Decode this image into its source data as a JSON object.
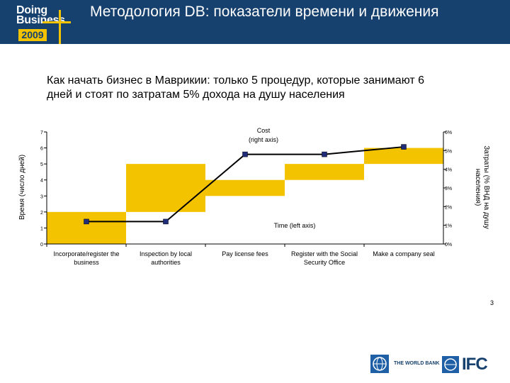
{
  "header": {
    "title": "Методология DB: показатели времени и движения",
    "logo": {
      "line1": "Doing",
      "line2": "Business",
      "year": "2009"
    }
  },
  "subtitle": "Как начать бизнес в Маврикии: только 5 процедур, которые занимают 6 дней и стоят по затратам 5% дохода на душу населения",
  "footer": {
    "page_number": "3",
    "world_bank_label": "THE WORLD BANK",
    "ifc_label": "IFC"
  },
  "colors": {
    "header_bg": "#16406e",
    "time_fill": "#f4c300",
    "cost_line": "#000000",
    "cost_marker": "#1f2d7a",
    "accent": "#f4c300"
  },
  "chart_data": {
    "type": "bar",
    "categories": [
      "Incorporate/register the business",
      "Inspection by local authorities",
      "Pay license fees",
      "Register with the Social Security Office",
      "Make a company seal"
    ],
    "time_ranges": [
      [
        0,
        2
      ],
      [
        2,
        5
      ],
      [
        3,
        4
      ],
      [
        4,
        5
      ],
      [
        5,
        6
      ]
    ],
    "cost_values": [
      1.2,
      1.2,
      4.8,
      4.8,
      5.2
    ],
    "ylabel_left": "Время (число дней)",
    "ylabel_right": "Затраты (% ВНД на душу населения)",
    "ylim_left": [
      0,
      7
    ],
    "yticks_left": [
      "0",
      "1",
      "2",
      "3",
      "4",
      "5",
      "6",
      "7"
    ],
    "ylim_right": [
      0,
      6
    ],
    "yticks_right": [
      "0%",
      "1%",
      "2%",
      "3%",
      "4%",
      "5%",
      "6%"
    ],
    "annotations": {
      "cost": "Cost\n(right axis)",
      "time": "Time (left axis)"
    },
    "grid": false
  }
}
